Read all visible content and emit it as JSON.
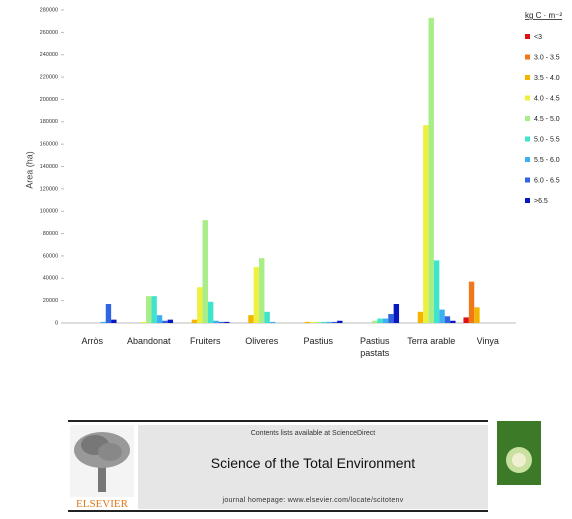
{
  "chart_data": {
    "type": "bar",
    "y_label": "Area (ha)",
    "legend_title": "kg C · m⁻²",
    "legend_position": "right",
    "categories": [
      "Arròs",
      "Abandonat",
      "Fruiters",
      "Oliveres",
      "Pastius",
      "Pastius pastats",
      "Terra arable",
      "Vinya"
    ],
    "series": [
      {
        "name": "<3",
        "color": "#e01010",
        "values": [
          0,
          0,
          0,
          0,
          0,
          0,
          0,
          5000
        ]
      },
      {
        "name": "3.0 - 3.5",
        "color": "#f07818",
        "values": [
          0,
          0,
          0,
          0,
          0,
          0,
          0,
          37000
        ]
      },
      {
        "name": "3.5 - 4.0",
        "color": "#f5b400",
        "values": [
          0,
          0,
          3000,
          7000,
          1000,
          0,
          10000,
          14000
        ]
      },
      {
        "name": "4.0 - 4.5",
        "color": "#eef040",
        "values": [
          0,
          1000,
          32000,
          50000,
          1000,
          0,
          177000,
          0
        ]
      },
      {
        "name": "4.5 - 5.0",
        "color": "#a8ee88",
        "values": [
          0,
          24000,
          92000,
          58000,
          1000,
          2000,
          273000,
          0
        ]
      },
      {
        "name": "5.0 - 5.5",
        "color": "#40e4cc",
        "values": [
          0,
          24000,
          19000,
          10000,
          1000,
          4000,
          56000,
          0
        ]
      },
      {
        "name": "5.5 - 6.0",
        "color": "#3cb0f0",
        "values": [
          1000,
          7000,
          2000,
          1000,
          1000,
          4000,
          12000,
          0
        ]
      },
      {
        "name": "6.0 - 6.5",
        "color": "#3064e0",
        "values": [
          17000,
          2000,
          1000,
          0,
          1000,
          8000,
          6000,
          0
        ]
      },
      {
        "name": ">6.5",
        "color": "#0818c0",
        "values": [
          3000,
          3000,
          1000,
          0,
          2000,
          17000,
          2000,
          0
        ]
      }
    ],
    "ylim": [
      0,
      280000
    ],
    "yticks": [
      0,
      20000,
      40000,
      60000,
      80000,
      100000,
      120000,
      140000,
      160000,
      180000,
      200000,
      220000,
      240000,
      260000,
      280000
    ],
    "grid": false
  },
  "journal_header": {
    "contents": "Contents lists available at ScienceDirect",
    "title": "Science of the Total Environment",
    "homepage": "journal homepage: www.elsevier.com/locate/scitotenv",
    "publisher": "ELSEVIER"
  }
}
